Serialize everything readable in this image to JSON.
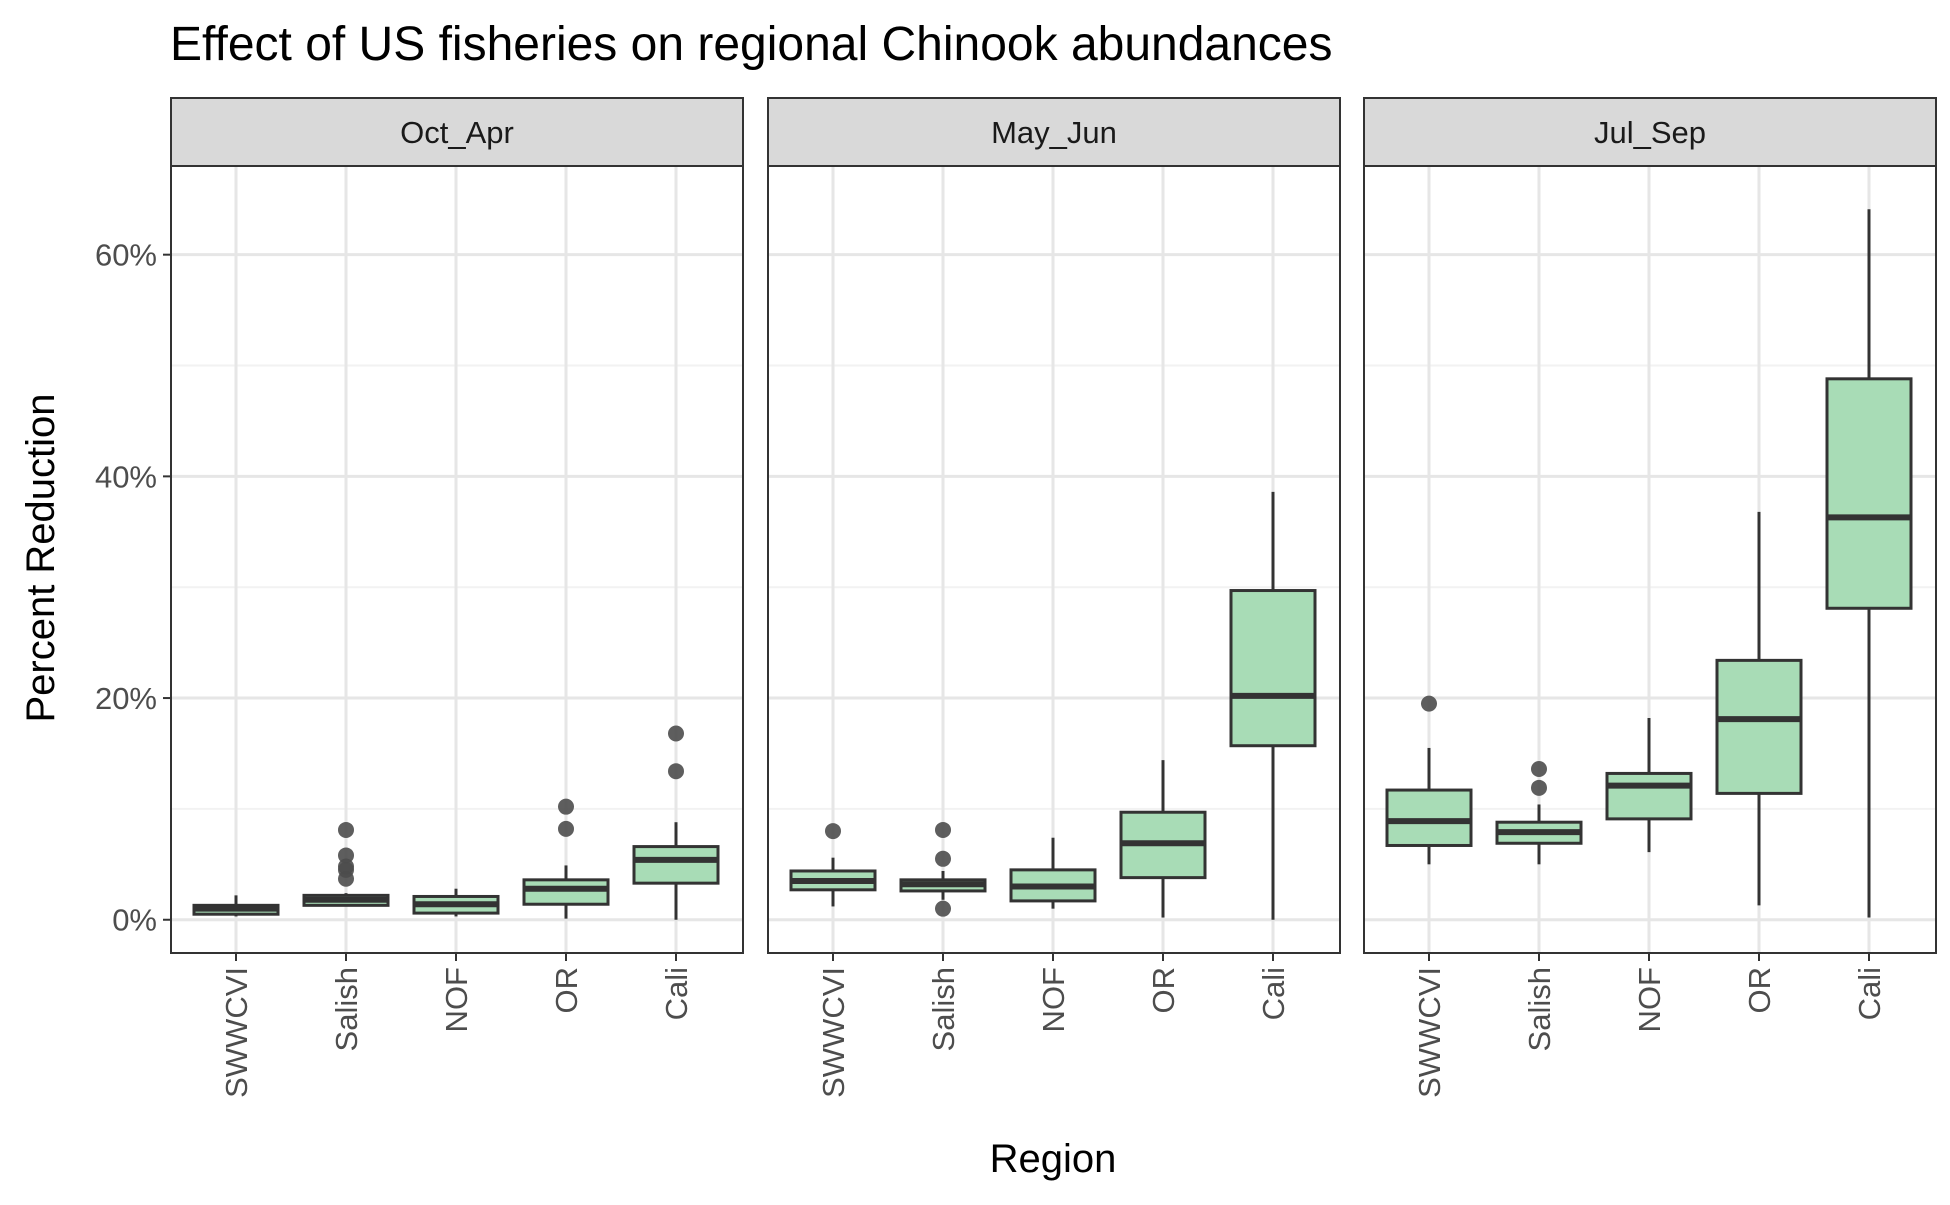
{
  "chart_data": {
    "type": "boxplot",
    "title": "Effect of US fisheries on regional Chinook abundances",
    "xlabel": "Region",
    "ylabel": "Percent Reduction",
    "ylim": [
      -3,
      68
    ],
    "yticks": [
      0,
      20,
      40,
      60
    ],
    "ytick_labels": [
      "0%",
      "20%",
      "40%",
      "60%"
    ],
    "grid": true,
    "box_fill": "#a8dcb6",
    "box_stroke": "#333333",
    "outlier_color": "#4d4d4d",
    "strip_fill": "#d9d9d9",
    "categories": [
      "SWWCVI",
      "Salish",
      "NOF",
      "OR",
      "Cali"
    ],
    "panels": [
      {
        "name": "Oct_Apr",
        "boxes": [
          {
            "category": "SWWCVI",
            "min": 0.3,
            "q1": 0.5,
            "median": 1.0,
            "q3": 1.3,
            "max": 2.2,
            "outliers": []
          },
          {
            "category": "Salish",
            "min": 1.2,
            "q1": 1.3,
            "median": 1.8,
            "q3": 2.2,
            "max": 2.4,
            "outliers": [
              3.7,
              4.5,
              4.8,
              5.8,
              8.1
            ]
          },
          {
            "category": "NOF",
            "min": 0.3,
            "q1": 0.6,
            "median": 1.4,
            "q3": 2.1,
            "max": 2.8,
            "outliers": []
          },
          {
            "category": "OR",
            "min": 0.1,
            "q1": 1.4,
            "median": 2.8,
            "q3": 3.6,
            "max": 4.9,
            "outliers": [
              8.2,
              10.2
            ]
          },
          {
            "category": "Cali",
            "min": 0.0,
            "q1": 3.3,
            "median": 5.4,
            "q3": 6.6,
            "max": 8.8,
            "outliers": [
              13.4,
              16.8
            ]
          }
        ]
      },
      {
        "name": "May_Jun",
        "boxes": [
          {
            "category": "SWWCVI",
            "min": 1.2,
            "q1": 2.7,
            "median": 3.5,
            "q3": 4.4,
            "max": 5.6,
            "outliers": [
              8.0
            ]
          },
          {
            "category": "Salish",
            "min": 1.8,
            "q1": 2.6,
            "median": 3.2,
            "q3": 3.6,
            "max": 4.4,
            "outliers": [
              1.0,
              5.5,
              8.1
            ]
          },
          {
            "category": "NOF",
            "min": 1.0,
            "q1": 1.7,
            "median": 3.0,
            "q3": 4.5,
            "max": 7.4,
            "outliers": []
          },
          {
            "category": "OR",
            "min": 0.2,
            "q1": 3.8,
            "median": 6.9,
            "q3": 9.7,
            "max": 14.4,
            "outliers": []
          },
          {
            "category": "Cali",
            "min": 0.0,
            "q1": 15.7,
            "median": 20.2,
            "q3": 29.7,
            "max": 38.6,
            "outliers": []
          }
        ]
      },
      {
        "name": "Jul_Sep",
        "boxes": [
          {
            "category": "SWWCVI",
            "min": 5.0,
            "q1": 6.7,
            "median": 8.9,
            "q3": 11.7,
            "max": 15.5,
            "outliers": [
              19.5
            ]
          },
          {
            "category": "Salish",
            "min": 5.0,
            "q1": 6.9,
            "median": 7.9,
            "q3": 8.8,
            "max": 10.4,
            "outliers": [
              11.9,
              13.6
            ]
          },
          {
            "category": "NOF",
            "min": 6.1,
            "q1": 9.1,
            "median": 12.1,
            "q3": 13.2,
            "max": 18.2,
            "outliers": []
          },
          {
            "category": "OR",
            "min": 1.3,
            "q1": 11.4,
            "median": 18.1,
            "q3": 23.4,
            "max": 36.8,
            "outliers": []
          },
          {
            "category": "Cali",
            "min": 0.2,
            "q1": 28.1,
            "median": 36.3,
            "q3": 48.8,
            "max": 64.1,
            "outliers": []
          }
        ]
      }
    ]
  }
}
